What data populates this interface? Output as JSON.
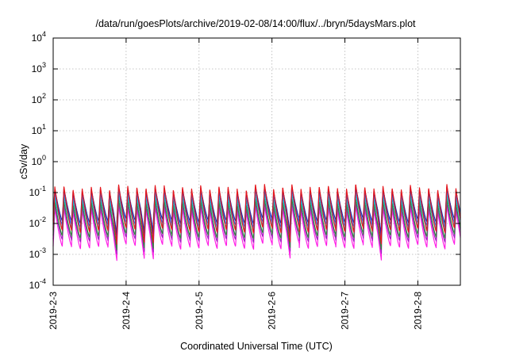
{
  "chart_data": {
    "type": "line",
    "title": "/data/run/goesPlots/archive/2019-02-08/14:00/flux/../bryn/5daysMars.plot",
    "xlabel": "Coordinated Universal Time (UTC)",
    "ylabel": "cSv/day",
    "yscale": "log",
    "ylim": [
      0.0001,
      10000
    ],
    "xlim": [
      "2019-02-03",
      "2019-02-08 14:00"
    ],
    "grid": true,
    "y_ticks": [
      {
        "value": 0.0001,
        "base": "10",
        "exp": "-4"
      },
      {
        "value": 0.001,
        "base": "10",
        "exp": "-3"
      },
      {
        "value": 0.01,
        "base": "10",
        "exp": "-2"
      },
      {
        "value": 0.1,
        "base": "10",
        "exp": "-1"
      },
      {
        "value": 1,
        "base": "10",
        "exp": "0"
      },
      {
        "value": 10,
        "base": "10",
        "exp": "1"
      },
      {
        "value": 100,
        "base": "10",
        "exp": "2"
      },
      {
        "value": 1000,
        "base": "10",
        "exp": "3"
      },
      {
        "value": 10000,
        "base": "10",
        "exp": "4"
      }
    ],
    "x_ticks": [
      "2019-2-3",
      "2019-2-4",
      "2019-2-5",
      "2019-2-6",
      "2019-2-7",
      "2019-2-8"
    ],
    "pattern": {
      "cycles_per_day": 8,
      "peak_value": 0.13,
      "trough_value": 0.004
    },
    "series": [
      {
        "color": "#e6161b",
        "peak": 0.15,
        "trough": 0.006
      },
      {
        "color": "#1f2aa8",
        "peak": 0.13,
        "trough": 0.012
      },
      {
        "color": "#2a6de8",
        "peak": 0.1,
        "trough": 0.009
      },
      {
        "color": "#18b8c8",
        "peak": 0.07,
        "trough": 0.007
      },
      {
        "color": "#2e8b3c",
        "peak": 0.05,
        "trough": 0.004
      },
      {
        "color": "#a020c0",
        "peak": 0.04,
        "trough": 0.003
      },
      {
        "color": "#ff1fe6",
        "peak": 0.03,
        "trough": 0.0018
      }
    ]
  }
}
